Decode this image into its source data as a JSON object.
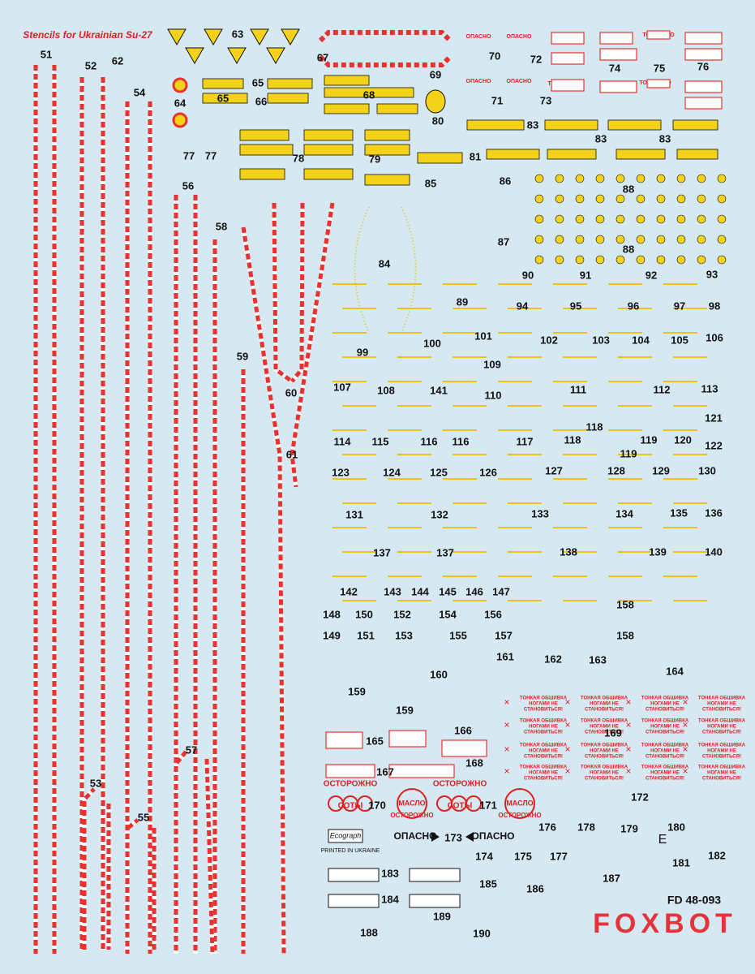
{
  "sheet": {
    "title": "Stencils for Ukrainian Su-27",
    "labels": [
      "51",
      "52",
      "62",
      "54",
      "63",
      "67",
      "69",
      "70",
      "72",
      "74",
      "75",
      "76",
      "64",
      "65",
      "65",
      "66",
      "68",
      "71",
      "73",
      "80",
      "83",
      "83",
      "83",
      "77",
      "77",
      "78",
      "79",
      "81",
      "85",
      "86",
      "88",
      "56",
      "58",
      "87",
      "88",
      "84",
      "90",
      "91",
      "92",
      "93",
      "89",
      "94",
      "95",
      "96",
      "97",
      "98",
      "100",
      "101",
      "102",
      "103",
      "104",
      "105",
      "106",
      "99",
      "59",
      "109",
      "107",
      "108",
      "141",
      "110",
      "111",
      "112",
      "113",
      "60",
      "121",
      "118",
      "114",
      "115",
      "116",
      "116",
      "117",
      "118",
      "119",
      "120",
      "122",
      "119",
      "61",
      "123",
      "124",
      "125",
      "126",
      "127",
      "128",
      "129",
      "130",
      "131",
      "132",
      "133",
      "134",
      "135",
      "136",
      "137",
      "137",
      "138",
      "139",
      "140",
      "142",
      "143",
      "144",
      "145",
      "146",
      "147",
      "158",
      "148",
      "150",
      "152",
      "154",
      "156",
      "149",
      "151",
      "153",
      "155",
      "157",
      "158",
      "161",
      "162",
      "163",
      "164",
      "160",
      "159",
      "159",
      "169",
      "166",
      "165",
      "57",
      "167",
      "168",
      "53",
      "172",
      "170",
      "171",
      "55",
      "176",
      "178",
      "179",
      "180",
      "173",
      "174",
      "175",
      "177",
      "181",
      "182",
      "183",
      "187",
      "185",
      "186",
      "184",
      "189",
      "188",
      "190"
    ],
    "danger": "ОПАСНО",
    "toxic": "ТОКСИЧНО",
    "caution": "ОСТОРОЖНО",
    "honeycomb": "СОТЫ",
    "oil": "МАСЛО",
    "thin_skin": [
      "ТОНКАЯ ОБШИВКА",
      "НОГАМИ НЕ",
      "СТАНОВИТЬСЯ!"
    ],
    "printer": "Ecograph",
    "printed": "PRINTED IN UKRAINE",
    "code": "FD 48-093",
    "brand": "FOXBOT",
    "e_mark": "E"
  }
}
